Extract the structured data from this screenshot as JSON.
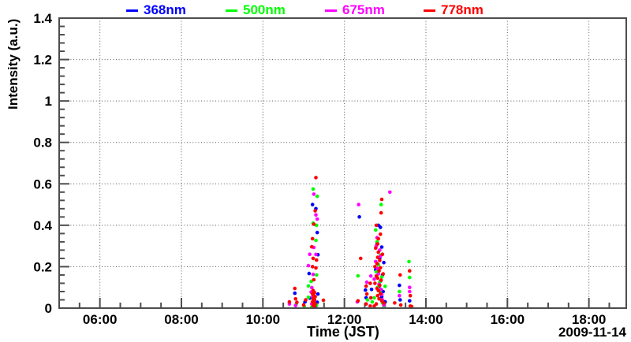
{
  "chart_data": {
    "type": "scatter",
    "title": "",
    "xlabel": "Time (JST)",
    "ylabel": "Intensity (a.u.)",
    "date_label": "2009-11-14",
    "legend_position": "top",
    "grid": "dotted lines at major ticks, both axes",
    "x_axis": {
      "start": "05:00",
      "end": "18:55",
      "minor_step_minutes": 30,
      "major_ticks": [
        {
          "time": "06:00",
          "label": "06:00"
        },
        {
          "time": "08:00",
          "label": "08:00"
        },
        {
          "time": "10:00",
          "label": "10:00"
        },
        {
          "time": "12:00",
          "label": "12:00"
        },
        {
          "time": "14:00",
          "label": "14:00"
        },
        {
          "time": "16:00",
          "label": "16:00"
        },
        {
          "time": "18:00",
          "label": "18:00"
        }
      ]
    },
    "y_axis": {
      "range": [
        0,
        1.4
      ],
      "minor_step": 0.04,
      "major_ticks": [
        {
          "v": 0,
          "label": "0"
        },
        {
          "v": 0.2,
          "label": "0.2"
        },
        {
          "v": 0.4,
          "label": "0.4"
        },
        {
          "v": 0.6,
          "label": "0.6"
        },
        {
          "v": 0.8,
          "label": "0.8"
        },
        {
          "v": 1,
          "label": "1"
        },
        {
          "v": 1.2,
          "label": "1.2"
        },
        {
          "v": 1.4,
          "label": "1.4"
        }
      ]
    },
    "series": [
      {
        "name": "368nm",
        "color": "#0000ff",
        "points": [
          [
            "10:47",
            0.072
          ],
          [
            "11:02",
            0.03
          ],
          [
            "11:08",
            0.167
          ],
          [
            "11:09",
            0.048
          ],
          [
            "11:13",
            0.5
          ],
          [
            "11:18",
            0.48
          ],
          [
            "11:18",
            0.01
          ],
          [
            "11:20",
            0.365
          ],
          [
            "11:20",
            0.028
          ],
          [
            "11:21",
            0.258
          ],
          [
            "11:21",
            0.068
          ],
          [
            "12:22",
            0.44
          ],
          [
            "12:31",
            0.087
          ],
          [
            "12:32",
            0.05
          ],
          [
            "12:40",
            0.09
          ],
          [
            "12:46",
            0.185
          ],
          [
            "12:48",
            0.31
          ],
          [
            "12:50",
            0.4
          ],
          [
            "12:51",
            0.105
          ],
          [
            "12:52",
            0.24
          ],
          [
            "12:53",
            0.39
          ],
          [
            "12:53",
            0.13
          ],
          [
            "12:55",
            0.295
          ],
          [
            "12:55",
            0.055
          ],
          [
            "12:56",
            0.16
          ],
          [
            "12:57",
            0.08
          ],
          [
            "12:58",
            0.22
          ],
          [
            "13:00",
            0.03
          ],
          [
            "13:21",
            0.11
          ],
          [
            "13:22",
            0.04
          ],
          [
            "13:36",
            0.035
          ]
        ]
      },
      {
        "name": "500nm",
        "color": "#00ff00",
        "points": [
          [
            "10:49",
            0.018
          ],
          [
            "11:01",
            0.008
          ],
          [
            "11:07",
            0.107
          ],
          [
            "11:07",
            0.052
          ],
          [
            "11:11",
            0.129
          ],
          [
            "11:12",
            0.005
          ],
          [
            "11:14",
            0.575
          ],
          [
            "11:14",
            0.41
          ],
          [
            "11:14",
            0.032
          ],
          [
            "11:18",
            0.327
          ],
          [
            "11:19",
            0.4
          ],
          [
            "11:19",
            0.16
          ],
          [
            "11:19",
            0.015
          ],
          [
            "11:20",
            0.54
          ],
          [
            "12:20",
            0.156
          ],
          [
            "12:34",
            0.04
          ],
          [
            "12:41",
            0.03
          ],
          [
            "12:44",
            0.05
          ],
          [
            "12:46",
            0.377
          ],
          [
            "12:47",
            0.175
          ],
          [
            "12:48",
            0.32
          ],
          [
            "12:49",
            0.1
          ],
          [
            "12:50",
            0.21
          ],
          [
            "12:52",
            0.125
          ],
          [
            "12:53",
            0.255
          ],
          [
            "12:53",
            0.075
          ],
          [
            "12:54",
            0.5
          ],
          [
            "12:55",
            0.15
          ],
          [
            "12:56",
            0.025
          ],
          [
            "12:58",
            0.005
          ],
          [
            "13:00",
            0.105
          ],
          [
            "13:21",
            0.08
          ],
          [
            "13:35",
            0.225
          ],
          [
            "13:36",
            0.148
          ]
        ]
      },
      {
        "name": "675nm",
        "color": "#ff00ff",
        "points": [
          [
            "10:39",
            0.02
          ],
          [
            "10:48",
            0.012
          ],
          [
            "11:07",
            0.205
          ],
          [
            "11:09",
            0.26
          ],
          [
            "11:11",
            0.078
          ],
          [
            "11:12",
            0.099
          ],
          [
            "11:12",
            0.02
          ],
          [
            "11:13",
            0.055
          ],
          [
            "11:14",
            0.163
          ],
          [
            "11:15",
            0.55
          ],
          [
            "11:15",
            0.293
          ],
          [
            "11:16",
            0.035
          ],
          [
            "11:18",
            0.45
          ],
          [
            "11:18",
            0.259
          ],
          [
            "11:20",
            0.43
          ],
          [
            "12:19",
            0.03
          ],
          [
            "12:21",
            0.5
          ],
          [
            "12:33",
            0.125
          ],
          [
            "12:39",
            0.155
          ],
          [
            "12:44",
            0.14
          ],
          [
            "12:46",
            0.225
          ],
          [
            "12:47",
            0.3
          ],
          [
            "12:48",
            0.34
          ],
          [
            "12:49",
            0.19
          ],
          [
            "12:50",
            0.165
          ],
          [
            "12:51",
            0.115
          ],
          [
            "12:52",
            0.28
          ],
          [
            "12:53",
            0.25
          ],
          [
            "12:54",
            0.09
          ],
          [
            "12:55",
            0.065
          ],
          [
            "12:56",
            0.04
          ],
          [
            "12:58",
            0.015
          ],
          [
            "13:07",
            0.56
          ],
          [
            "13:21",
            0.06
          ],
          [
            "13:36",
            0.1
          ],
          [
            "13:36",
            0.08
          ]
        ]
      },
      {
        "name": "778nm",
        "color": "#ff0000",
        "points": [
          [
            "10:39",
            0.03
          ],
          [
            "10:47",
            0.095
          ],
          [
            "10:48",
            0.045
          ],
          [
            "10:50",
            0.028
          ],
          [
            "11:00",
            0.015
          ],
          [
            "11:03",
            0.04
          ],
          [
            "11:12",
            0.296
          ],
          [
            "11:13",
            0.335
          ],
          [
            "11:13",
            0.2
          ],
          [
            "11:13",
            0.07
          ],
          [
            "11:13",
            0.03
          ],
          [
            "11:14",
            0.24
          ],
          [
            "11:14",
            0.085
          ],
          [
            "11:14",
            0.045
          ],
          [
            "11:14",
            0.015
          ],
          [
            "11:15",
            0.405
          ],
          [
            "11:15",
            0.137
          ],
          [
            "11:15",
            0.06
          ],
          [
            "11:15",
            0.025
          ],
          [
            "11:15",
            0.005
          ],
          [
            "11:16",
            0.075
          ],
          [
            "11:16",
            0.04
          ],
          [
            "11:16",
            0.01
          ],
          [
            "11:17",
            0.47
          ],
          [
            "11:17",
            0.055
          ],
          [
            "11:17",
            0.02
          ],
          [
            "11:18",
            0.63
          ],
          [
            "11:18",
            0.194
          ],
          [
            "11:19",
            0.232
          ],
          [
            "11:29",
            0.038
          ],
          [
            "12:20",
            0.035
          ],
          [
            "12:24",
            0.24
          ],
          [
            "12:32",
            0.106
          ],
          [
            "12:32",
            0.02
          ],
          [
            "12:33",
            0.068
          ],
          [
            "12:38",
            0.12
          ],
          [
            "12:38",
            0.01
          ],
          [
            "12:39",
            0.05
          ],
          [
            "12:44",
            0.01
          ],
          [
            "12:45",
            0.12
          ],
          [
            "12:45",
            0.2
          ],
          [
            "12:46",
            0.29
          ],
          [
            "12:47",
            0.4
          ],
          [
            "12:47",
            0.155
          ],
          [
            "12:47",
            0.02
          ],
          [
            "12:48",
            0.215
          ],
          [
            "12:48",
            0.095
          ],
          [
            "12:49",
            0.31
          ],
          [
            "12:49",
            0.245
          ],
          [
            "12:49",
            0.145
          ],
          [
            "12:49",
            0.06
          ],
          [
            "12:50",
            0.335
          ],
          [
            "12:50",
            0.27
          ],
          [
            "12:50",
            0.085
          ],
          [
            "12:51",
            0.18
          ],
          [
            "12:51",
            0.045
          ],
          [
            "12:52",
            0.23
          ],
          [
            "12:52",
            0.11
          ],
          [
            "12:53",
            0.357
          ],
          [
            "12:53",
            0.195
          ],
          [
            "12:53",
            0.07
          ],
          [
            "12:54",
            0.46
          ],
          [
            "12:54",
            0.135
          ],
          [
            "12:55",
            0.525
          ],
          [
            "12:55",
            0.035
          ],
          [
            "12:56",
            0.26
          ],
          [
            "12:57",
            0.165
          ],
          [
            "12:58",
            0.025
          ],
          [
            "13:14",
            0.025
          ],
          [
            "13:22",
            0.16
          ],
          [
            "13:23",
            0.015
          ],
          [
            "13:36",
            0.18
          ],
          [
            "13:37",
            0.06
          ],
          [
            "13:37",
            0.01
          ],
          [
            "13:39",
            0.008
          ]
        ]
      }
    ]
  }
}
